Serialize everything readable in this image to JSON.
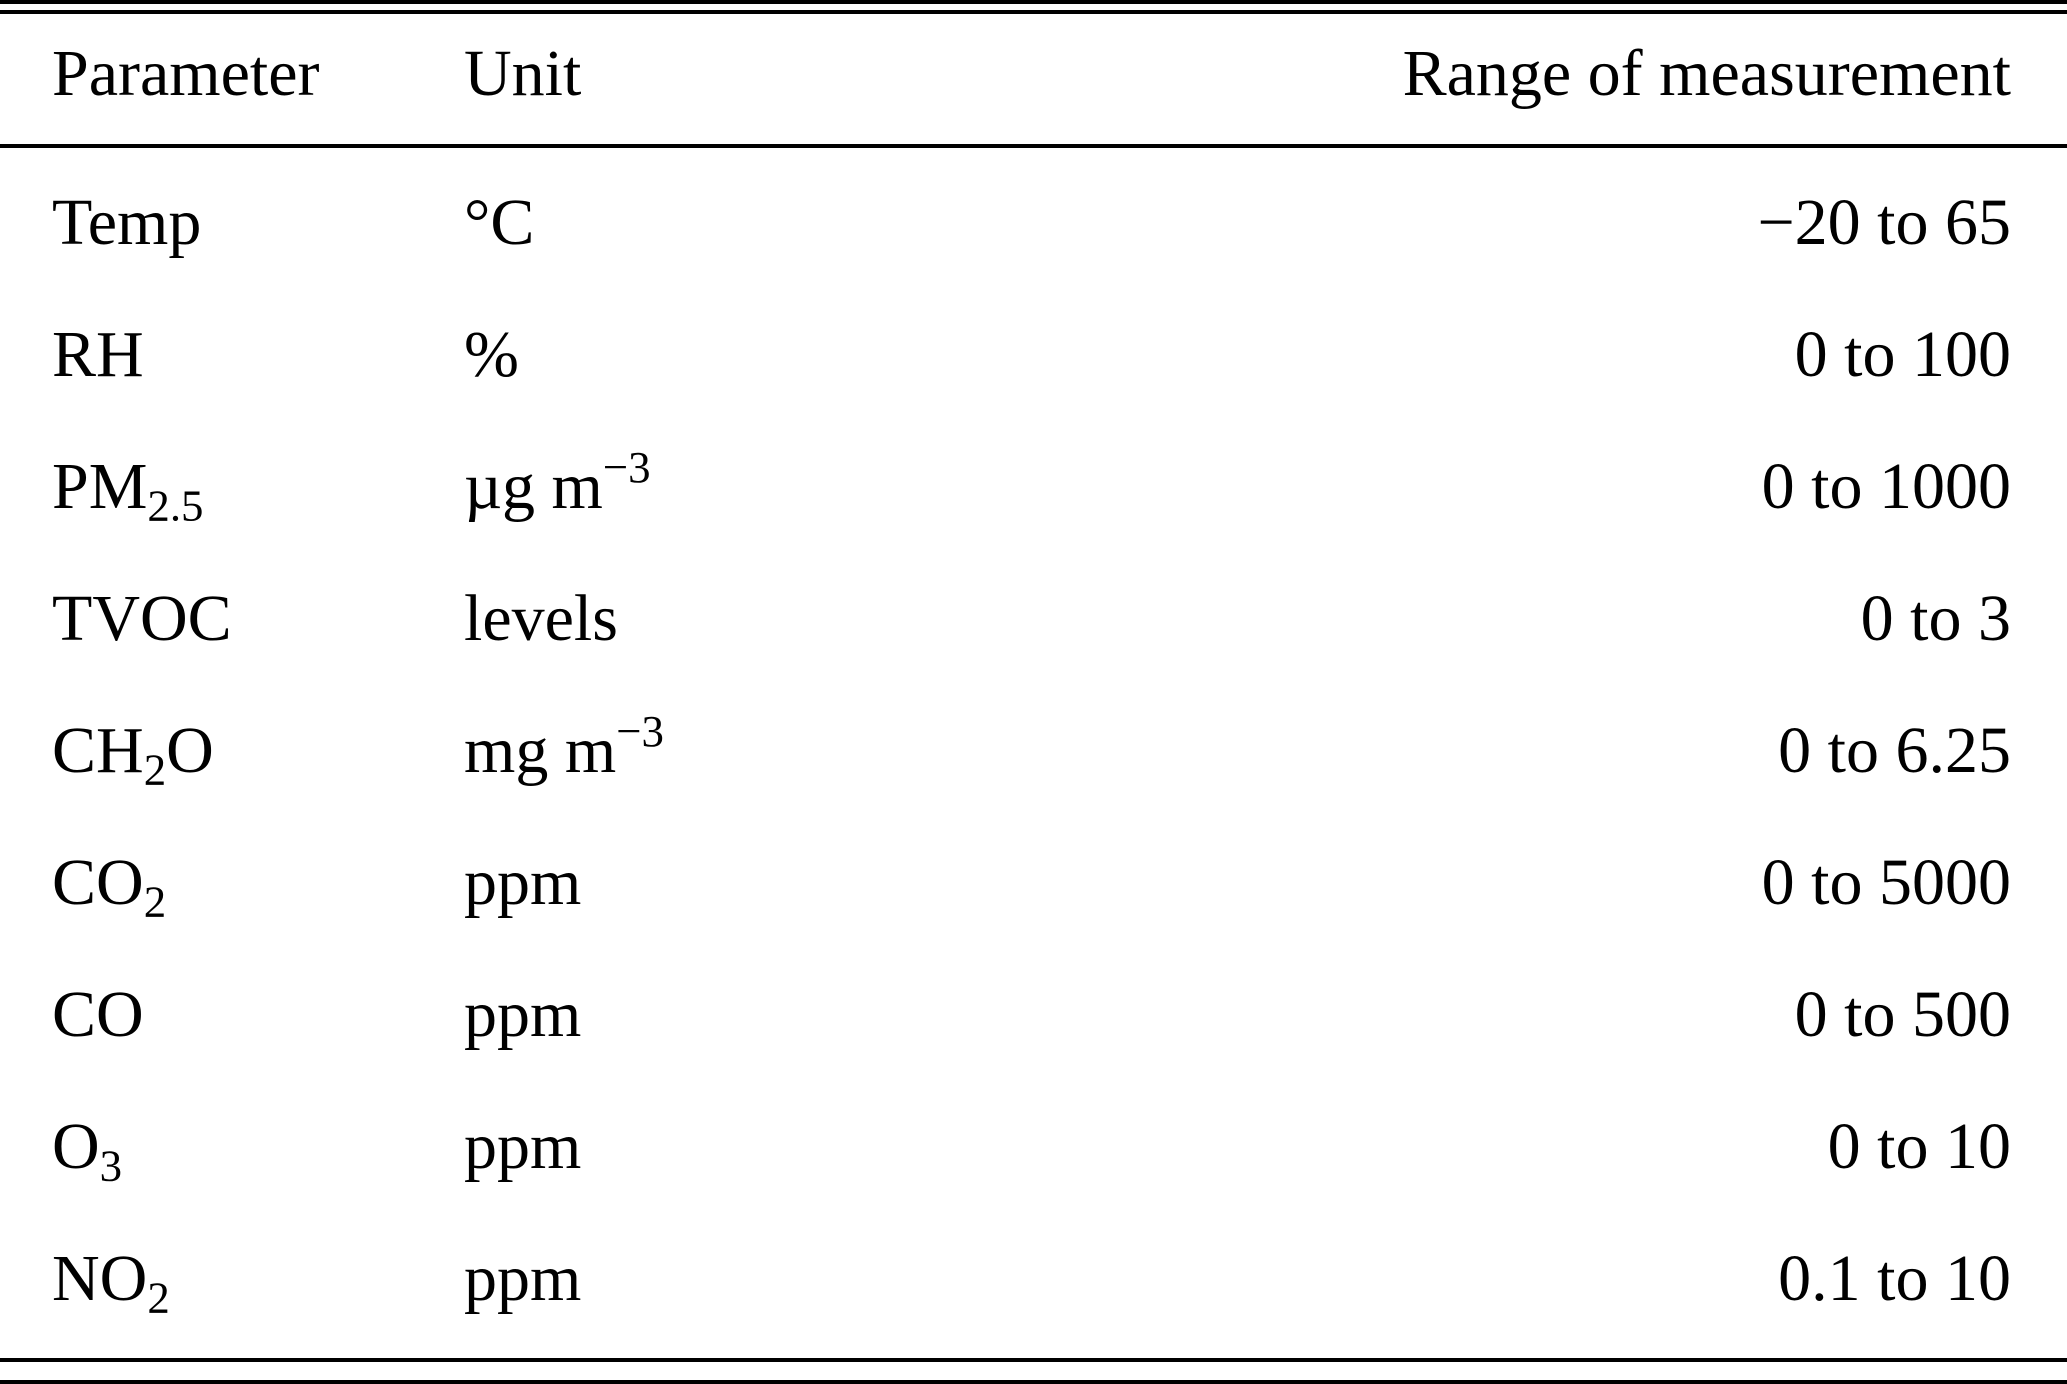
{
  "table": {
    "columns": [
      {
        "label": "Parameter",
        "align": "left"
      },
      {
        "label": "Unit",
        "align": "left"
      },
      {
        "label": "Range of measurement",
        "align": "right"
      }
    ],
    "rows": [
      {
        "parameter": [
          [
            "Temp",
            "n"
          ]
        ],
        "unit": [
          [
            "°C",
            "n"
          ]
        ],
        "range": "−20 to 65"
      },
      {
        "parameter": [
          [
            "RH",
            "n"
          ]
        ],
        "unit": [
          [
            "%",
            "n"
          ]
        ],
        "range": "0 to 100"
      },
      {
        "parameter": [
          [
            "PM",
            "n"
          ],
          [
            "2.5",
            "sub"
          ]
        ],
        "unit": [
          [
            "µg m",
            "n"
          ],
          [
            "−3",
            "sup"
          ]
        ],
        "range": "0 to 1000"
      },
      {
        "parameter": [
          [
            "TVOC",
            "n"
          ]
        ],
        "unit": [
          [
            "levels",
            "n"
          ]
        ],
        "range": "0 to 3"
      },
      {
        "parameter": [
          [
            "CH",
            "n"
          ],
          [
            "2",
            "sub"
          ],
          [
            "O",
            "n"
          ]
        ],
        "unit": [
          [
            "mg m",
            "n"
          ],
          [
            "−3",
            "sup"
          ]
        ],
        "range": "0 to 6.25"
      },
      {
        "parameter": [
          [
            "CO",
            "n"
          ],
          [
            "2",
            "sub"
          ]
        ],
        "unit": [
          [
            "ppm",
            "n"
          ]
        ],
        "range": "0 to 5000"
      },
      {
        "parameter": [
          [
            "CO",
            "n"
          ]
        ],
        "unit": [
          [
            "ppm",
            "n"
          ]
        ],
        "range": "0 to 500"
      },
      {
        "parameter": [
          [
            "O",
            "n"
          ],
          [
            "3",
            "sub"
          ]
        ],
        "unit": [
          [
            "ppm",
            "n"
          ]
        ],
        "range": "0 to 10"
      },
      {
        "parameter": [
          [
            "NO",
            "n"
          ],
          [
            "2",
            "sub"
          ]
        ],
        "unit": [
          [
            "ppm",
            "n"
          ]
        ],
        "range": "0.1 to 10"
      }
    ]
  }
}
